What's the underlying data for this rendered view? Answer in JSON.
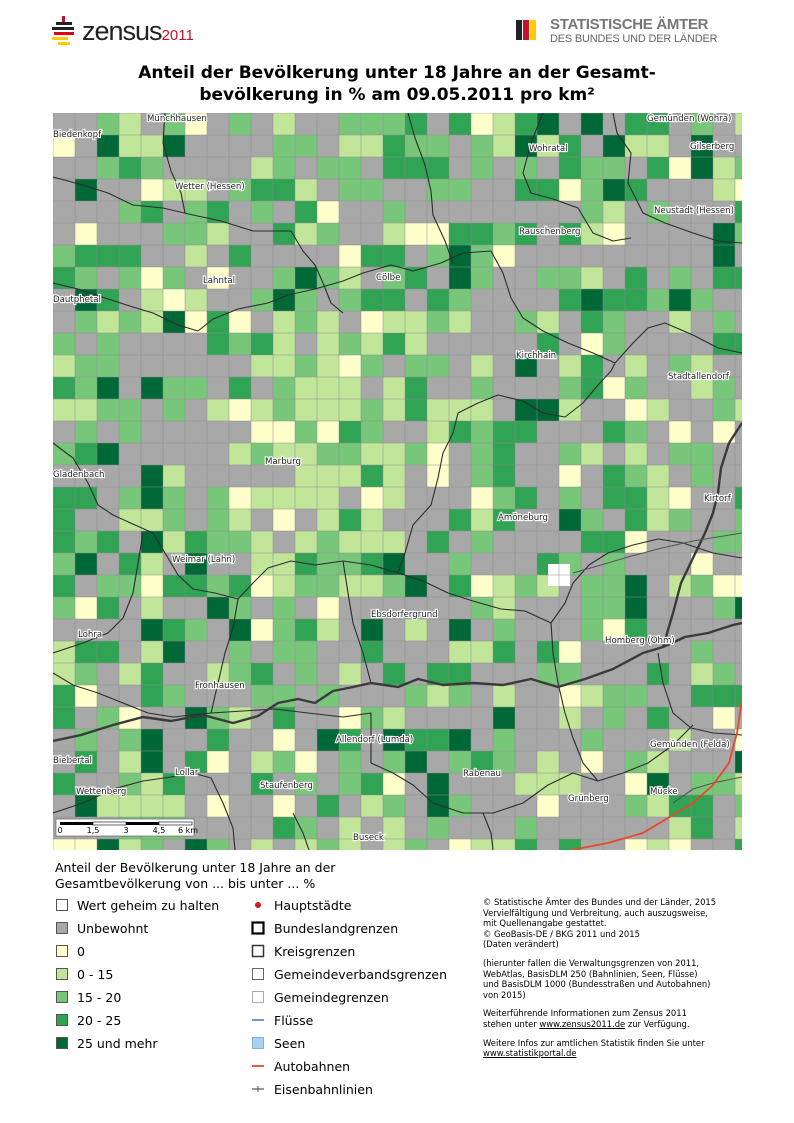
{
  "header": {
    "zensus_word": "zensus",
    "zensus_year": "2011",
    "stat_line1": "STATISTISCHE ÄMTER",
    "stat_line2": "DES BUNDES UND DER LÄNDER"
  },
  "title_line1": "Anteil der Bevölkerung unter 18 Jahre an der Gesamt-",
  "title_line2": "bevölkerung in % am 09.05.2011 pro km²",
  "colors": {
    "unbewohnt": "#a8a8a8",
    "zero": "#ffffcc",
    "c0_15": "#c2e699",
    "c15_20": "#78c679",
    "c20_25": "#31a354",
    "c25_plus": "#006837",
    "autobahn": "#e8472a"
  },
  "places": [
    {
      "name": "Biedenkopf"
    },
    {
      "name": "Münchhausen"
    },
    {
      "name": "Wohratal"
    },
    {
      "name": "Gemünden (Wohra)"
    },
    {
      "name": "Gilserberg"
    },
    {
      "name": "Wetter (Hessen)"
    },
    {
      "name": "Neustadt (Hessen)"
    },
    {
      "name": "Rauschenberg"
    },
    {
      "name": "Lahntal"
    },
    {
      "name": "Cölbe"
    },
    {
      "name": "Dautphetal"
    },
    {
      "name": "Kirchhain"
    },
    {
      "name": "Stadtallendorf"
    },
    {
      "name": "Gladenbach"
    },
    {
      "name": "Marburg"
    },
    {
      "name": "Kirtorf"
    },
    {
      "name": "Amöneburg"
    },
    {
      "name": "Weimar (Lahn)"
    },
    {
      "name": "Ebsdorfergrund"
    },
    {
      "name": "Lohra"
    },
    {
      "name": "Homberg (Ohm)"
    },
    {
      "name": "Fronhausen"
    },
    {
      "name": "Allendorf (Lumda)"
    },
    {
      "name": "Gemünden (Felda)"
    },
    {
      "name": "Biebertal"
    },
    {
      "name": "Lollar"
    },
    {
      "name": "Rabenau"
    },
    {
      "name": "Staufenberg"
    },
    {
      "name": "Wettenberg"
    },
    {
      "name": "Mücke"
    },
    {
      "name": "Grünberg"
    },
    {
      "name": "Buseck"
    }
  ],
  "scalebar": {
    "labels": [
      "0",
      "1,5",
      "3",
      "4,5",
      "6 km"
    ]
  },
  "legend": {
    "title_line1": "Anteil der Bevölkerung unter 18 Jahre an der",
    "title_line2": "Gesamtbevölkerung von ... bis unter ... %",
    "classes": [
      {
        "label": "Wert geheim zu halten",
        "color": "#ffffff"
      },
      {
        "label": "Unbewohnt",
        "color": "#a8a8a8"
      },
      {
        "label": "0",
        "color": "#ffffcc"
      },
      {
        "label": "0 - 15",
        "color": "#c2e699"
      },
      {
        "label": "15 - 20",
        "color": "#78c679"
      },
      {
        "label": "20 - 25",
        "color": "#31a354"
      },
      {
        "label": "25 und mehr",
        "color": "#006837"
      }
    ],
    "features": [
      {
        "label": "Hauptstädte",
        "icon": "red-dot"
      },
      {
        "label": "Bundeslandgrenzen",
        "icon": "thick-box"
      },
      {
        "label": "Kreisgrenzen",
        "icon": "medium-box"
      },
      {
        "label": "Gemeindeverbandsgrenzen",
        "icon": "thin-box"
      },
      {
        "label": "Gemeindegrenzen",
        "icon": "light-box"
      },
      {
        "label": "Flüsse",
        "icon": "blue-line",
        "color": "#4a7fc1"
      },
      {
        "label": "Seen",
        "icon": "blue-box",
        "color": "#a6d2f2"
      },
      {
        "label": "Autobahnen",
        "icon": "red-line",
        "color": "#e8472a"
      },
      {
        "label": "Eisenbahnlinien",
        "icon": "rail-line"
      }
    ]
  },
  "credits": {
    "c1": "© Statistische Ämter des Bundes und der Länder, 2015",
    "c2": "Vervielfältigung und Verbreitung, auch auszugsweise,",
    "c3": "mit Quellenangabe gestattet.",
    "c4": "© GeoBasis-DE / BKG 2011 und 2015",
    "c5": "(Daten verändert)",
    "h1": "(hierunter fallen die Verwaltungsgrenzen von 2011,",
    "h2": "WebAtlas, BasisDLM 250 (Bahnlinien, Seen, Flüsse)",
    "h3": "und BasisDLM 1000 (Bundesstraßen und Autobahnen)",
    "h4": "von 2015)",
    "w1": "Weiterführende Informationen zum Zensus 2011",
    "w2a": "stehen unter ",
    "w2link": "www.zensus2011.de",
    "w2b": " zur Verfügung.",
    "s1": "Weitere Infos zur amtlichen Statistik finden Sie unter",
    "s2link": "www.statistikportal.de"
  }
}
